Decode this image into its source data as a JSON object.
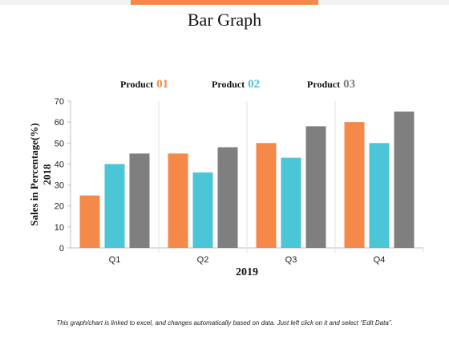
{
  "title": "Bar Graph",
  "footnote": "This graph/chart is linked to excel, and changes automatically based on data. Just left click on it and select “Edit Data”.",
  "colors": {
    "accent": "#f4894a",
    "series1": "#f4894a",
    "series2": "#4ac6d6",
    "series3": "#7f7f7f"
  },
  "chart_data": {
    "type": "bar",
    "categories": [
      "Q1",
      "Q2",
      "Q3",
      "Q4"
    ],
    "series": [
      {
        "name": "Product 01",
        "label": "Product",
        "num": "01",
        "values": [
          25,
          45,
          50,
          60
        ]
      },
      {
        "name": "Product 02",
        "label": "Product",
        "num": "02",
        "values": [
          40,
          36,
          43,
          50
        ]
      },
      {
        "name": "Product 03",
        "label": "Product",
        "num": "03",
        "values": [
          45,
          48,
          58,
          65
        ]
      }
    ],
    "xlabel": "2019",
    "ylabel": "Sales in Percentage(%) 2018",
    "ylabel_line1": "Sales in Percentage(%)",
    "ylabel_line2": "2018",
    "ylim": [
      0,
      70
    ],
    "yticks": [
      0,
      10,
      20,
      30,
      40,
      50,
      60,
      70
    ],
    "legend_position": "top",
    "grid": false
  }
}
